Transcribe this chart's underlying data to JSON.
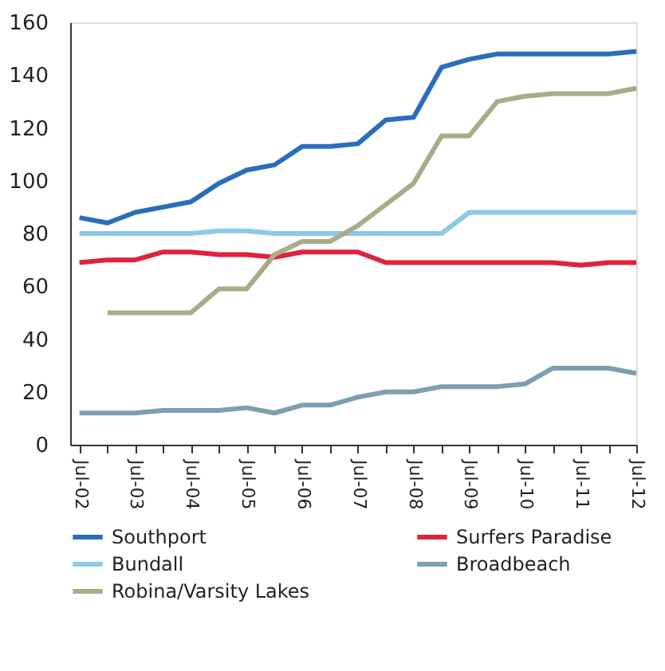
{
  "chart_data": {
    "type": "line",
    "x": [
      "2002-07",
      "2003-01",
      "2003-07",
      "2004-01",
      "2004-07",
      "2005-01",
      "2005-07",
      "2006-01",
      "2006-07",
      "2007-01",
      "2007-07",
      "2008-01",
      "2008-07",
      "2009-01",
      "2009-07",
      "2010-01",
      "2010-07",
      "2011-01",
      "2011-07",
      "2012-01",
      "2012-07"
    ],
    "series": [
      {
        "name": "Southport",
        "color": "#2a6ebb",
        "values": [
          86,
          84,
          88,
          90,
          92,
          99,
          104,
          106,
          113,
          113,
          114,
          123,
          124,
          143,
          146,
          148,
          148,
          148,
          148,
          148,
          149
        ]
      },
      {
        "name": "Surfers Paradise",
        "color": "#e0223c",
        "values": [
          69,
          70,
          70,
          73,
          73,
          72,
          72,
          71,
          73,
          73,
          73,
          69,
          69,
          69,
          69,
          69,
          69,
          69,
          68,
          69,
          69
        ]
      },
      {
        "name": "Bundall",
        "color": "#8ec8e8",
        "values": [
          80,
          80,
          80,
          80,
          80,
          81,
          81,
          80,
          80,
          80,
          80,
          80,
          80,
          80,
          88,
          88,
          88,
          88,
          88,
          88,
          88
        ]
      },
      {
        "name": "Broadbeach",
        "color": "#7d9fb0",
        "values": [
          12,
          12,
          12,
          13,
          13,
          13,
          14,
          12,
          15,
          15,
          18,
          20,
          20,
          22,
          22,
          22,
          23,
          29,
          29,
          29,
          27
        ]
      },
      {
        "name": "Robina/Varsity Lakes",
        "color": "#a8ac88",
        "values": [
          null,
          50,
          50,
          50,
          50,
          59,
          59,
          72,
          77,
          77,
          83,
          91,
          99,
          117,
          117,
          130,
          132,
          133,
          133,
          133,
          135
        ]
      }
    ],
    "xlim": [
      "2002-05",
      "2012-07"
    ],
    "xticks": [
      {
        "value": "2002-07",
        "label": "Jul-02"
      },
      {
        "value": "2003-01",
        "label": null
      },
      {
        "value": "2003-07",
        "label": "Jul-03"
      },
      {
        "value": "2004-01",
        "label": null
      },
      {
        "value": "2004-07",
        "label": "Jul-04"
      },
      {
        "value": "2005-01",
        "label": null
      },
      {
        "value": "2005-07",
        "label": "Jul-05"
      },
      {
        "value": "2006-01",
        "label": null
      },
      {
        "value": "2006-07",
        "label": "Jul-06"
      },
      {
        "value": "2007-01",
        "label": null
      },
      {
        "value": "2007-07",
        "label": "Jul-07"
      },
      {
        "value": "2008-01",
        "label": null
      },
      {
        "value": "2008-07",
        "label": "Jul-08"
      },
      {
        "value": "2009-01",
        "label": null
      },
      {
        "value": "2009-07",
        "label": "Jul-09"
      },
      {
        "value": "2010-01",
        "label": null
      },
      {
        "value": "2010-07",
        "label": "Jul-10"
      },
      {
        "value": "2011-01",
        "label": null
      },
      {
        "value": "2011-07",
        "label": "Jul-11"
      },
      {
        "value": "2012-01",
        "label": null
      },
      {
        "value": "2012-07",
        "label": "Jul-12"
      }
    ],
    "ylim": [
      0,
      160
    ],
    "yticks": [
      0,
      20,
      40,
      60,
      80,
      100,
      120,
      140,
      160
    ],
    "grid": false,
    "legend": "bottom",
    "marker": "none",
    "line_style": "solid"
  }
}
